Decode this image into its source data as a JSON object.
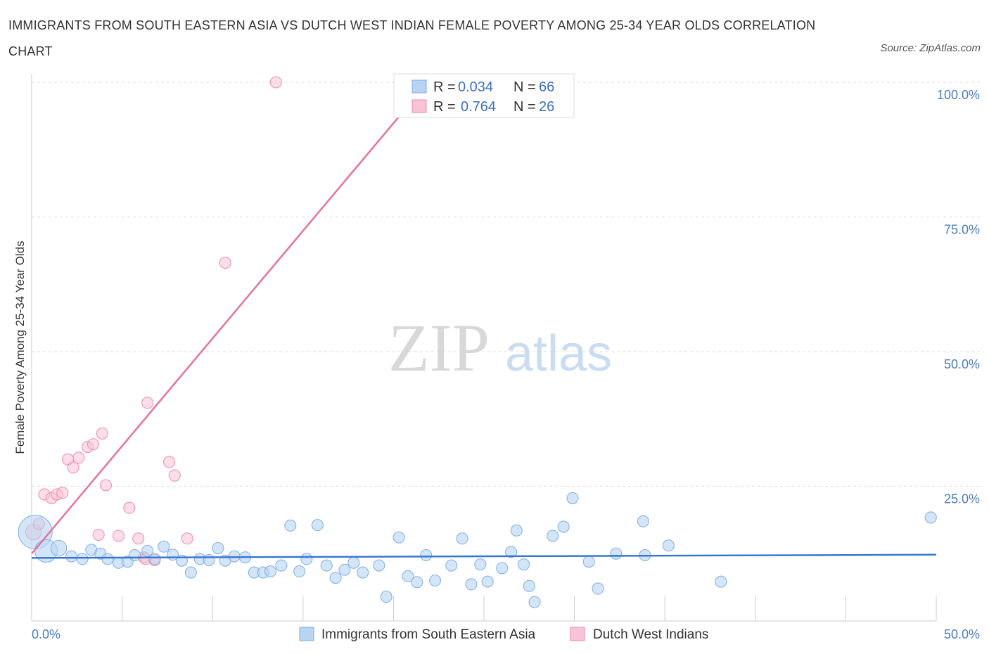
{
  "title": "IMMIGRANTS FROM SOUTH EASTERN ASIA VS DUTCH WEST INDIAN FEMALE POVERTY AMONG 25-34 YEAR OLDS CORRELATION CHART",
  "source": "Source: ZipAtlas.com",
  "watermark": {
    "zip": "ZIP",
    "atlas": "atlas"
  },
  "colors": {
    "blue": "#7aaee8",
    "blue_fill": "#b9d3f3",
    "pink": "#f08aaa",
    "pink_fill": "#f8c3d4",
    "blue_line": "#3a78d0",
    "pink_line": "#e8729a",
    "tick": "#4a7cc4"
  },
  "legend": {
    "rows": [
      {
        "r_label": "R = ",
        "r_value": "0.034",
        "n_label": "N = ",
        "n_value": "66"
      },
      {
        "r_label": "R = ",
        "r_value": "0.764",
        "n_label": "N = ",
        "n_value": "26"
      }
    ]
  },
  "chart_data": {
    "type": "scatter",
    "ylabel": "Female Poverty Among 25-34 Year Olds",
    "x_tick_labels": [
      "0.0%",
      "50.0%"
    ],
    "y_tick_labels": [
      "100.0%",
      "75.0%",
      "50.0%",
      "25.0%"
    ],
    "y_ticks": [
      100,
      75,
      50,
      25
    ],
    "xlim": [
      0,
      50
    ],
    "ylim": [
      0,
      100
    ],
    "grid": true,
    "series": [
      {
        "name": "Immigrants from South Eastern Asia",
        "color": "#7aaee8",
        "trend": {
          "x": [
            0,
            50
          ],
          "y": [
            11.7,
            12.3
          ]
        },
        "points": [
          [
            0.2,
            16.5,
            3
          ],
          [
            0.8,
            13,
            2
          ],
          [
            1.5,
            13.5,
            1.4
          ],
          [
            2.2,
            12,
            1
          ],
          [
            2.8,
            11.5,
            1
          ],
          [
            3.3,
            13.2,
            1
          ],
          [
            3.8,
            12.5,
            1
          ],
          [
            4.2,
            11.5,
            1
          ],
          [
            4.8,
            10.8,
            1
          ],
          [
            5.3,
            11,
            1
          ],
          [
            5.7,
            12.2,
            1
          ],
          [
            6.4,
            13,
            1
          ],
          [
            6.8,
            11.5,
            1
          ],
          [
            7.3,
            13.8,
            1
          ],
          [
            7.8,
            12.3,
            1
          ],
          [
            8.3,
            11.2,
            1
          ],
          [
            8.8,
            9,
            1
          ],
          [
            9.3,
            11.5,
            1
          ],
          [
            9.8,
            11.3,
            1
          ],
          [
            10.3,
            13.5,
            1
          ],
          [
            10.7,
            11.2,
            1
          ],
          [
            11.2,
            12,
            1
          ],
          [
            11.8,
            11.8,
            1
          ],
          [
            12.3,
            9,
            1
          ],
          [
            12.8,
            9,
            1
          ],
          [
            13.2,
            9.2,
            1
          ],
          [
            13.8,
            10.3,
            1
          ],
          [
            14.3,
            17.7,
            1
          ],
          [
            14.8,
            9.2,
            1
          ],
          [
            15.2,
            11.5,
            1
          ],
          [
            15.8,
            17.8,
            1
          ],
          [
            16.3,
            10.3,
            1
          ],
          [
            16.8,
            8,
            1
          ],
          [
            17.3,
            9.5,
            1
          ],
          [
            17.8,
            10.8,
            1
          ],
          [
            18.3,
            9,
            1
          ],
          [
            19.2,
            10.3,
            1
          ],
          [
            19.6,
            4.5,
            1
          ],
          [
            20.3,
            15.5,
            1
          ],
          [
            20.8,
            8.3,
            1
          ],
          [
            21.3,
            7.2,
            1
          ],
          [
            21.8,
            12.2,
            1
          ],
          [
            22.3,
            7.5,
            1
          ],
          [
            23.2,
            10.3,
            1
          ],
          [
            23.8,
            15.3,
            1
          ],
          [
            24.3,
            6.8,
            1
          ],
          [
            24.8,
            10.5,
            1
          ],
          [
            25.2,
            7.3,
            1
          ],
          [
            26,
            9.8,
            1
          ],
          [
            26.5,
            12.8,
            1
          ],
          [
            26.8,
            16.8,
            1
          ],
          [
            27.2,
            10.5,
            1
          ],
          [
            27.5,
            6.5,
            1
          ],
          [
            27.8,
            3.5,
            1
          ],
          [
            28.8,
            15.8,
            1
          ],
          [
            29.4,
            17.5,
            1
          ],
          [
            29.9,
            22.8,
            1
          ],
          [
            30.8,
            11,
            1
          ],
          [
            31.3,
            6,
            1
          ],
          [
            32.3,
            12.5,
            1
          ],
          [
            33.8,
            18.5,
            1
          ],
          [
            33.9,
            12.2,
            1
          ],
          [
            35.2,
            14,
            1
          ],
          [
            38.1,
            7.3,
            1
          ],
          [
            49.7,
            19.2,
            1
          ],
          [
            49.9,
            19.1,
            0.01
          ]
        ]
      },
      {
        "name": "Dutch West Indians",
        "color": "#f08aaa",
        "trend": {
          "x": [
            0,
            21.9
          ],
          "y": [
            12.5,
            100
          ]
        },
        "points": [
          [
            0.1,
            16.5,
            1.4
          ],
          [
            0.4,
            18,
            1
          ],
          [
            0.7,
            23.5,
            1
          ],
          [
            1.1,
            22.8,
            1
          ],
          [
            1.4,
            23.5,
            1
          ],
          [
            1.7,
            23.8,
            1
          ],
          [
            2,
            30,
            1
          ],
          [
            2.3,
            28.5,
            1
          ],
          [
            2.6,
            30.3,
            1
          ],
          [
            3.1,
            32.3,
            1
          ],
          [
            3.4,
            32.8,
            1
          ],
          [
            3.7,
            16,
            1
          ],
          [
            3.9,
            34.8,
            1
          ],
          [
            4.1,
            25.2,
            1
          ],
          [
            4.8,
            15.8,
            1
          ],
          [
            5.4,
            21,
            1
          ],
          [
            5.9,
            15.3,
            1
          ],
          [
            6.2,
            11.8,
            1
          ],
          [
            6.4,
            40.5,
            1
          ],
          [
            6.8,
            11.3,
            1
          ],
          [
            7.6,
            29.5,
            1
          ],
          [
            7.9,
            27,
            1
          ],
          [
            8.6,
            15.3,
            1
          ],
          [
            10.7,
            66.5,
            1
          ],
          [
            13.5,
            100,
            1
          ],
          [
            6.3,
            11.5,
            1
          ]
        ]
      }
    ]
  },
  "bottom_legend": [
    "Immigrants from South Eastern Asia",
    "Dutch West Indians"
  ]
}
